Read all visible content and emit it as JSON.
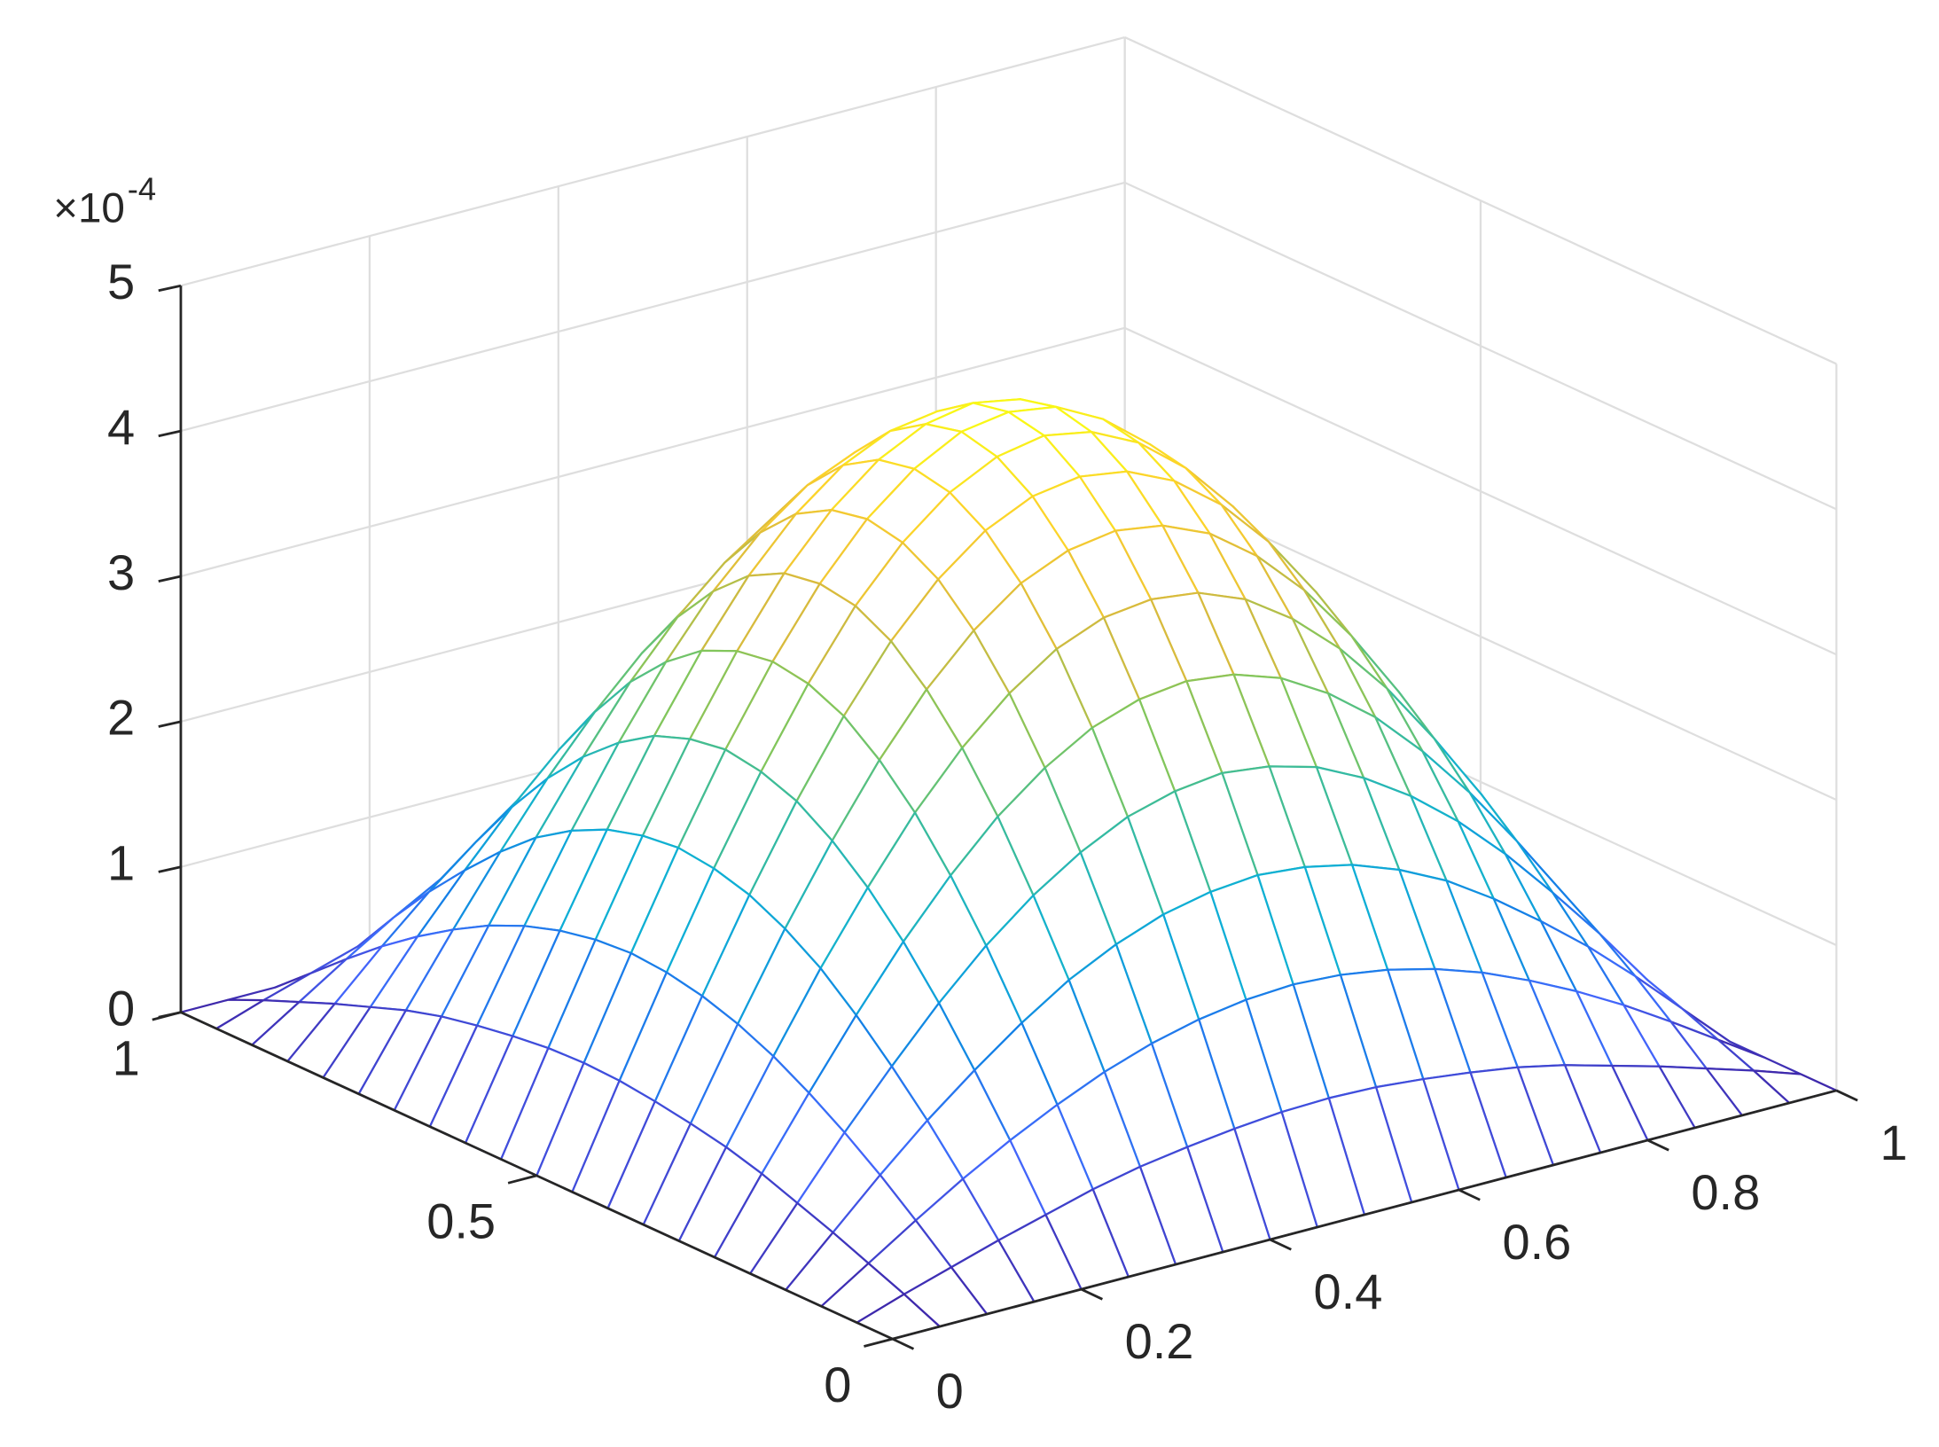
{
  "chart_data": {
    "type": "mesh",
    "z_multiplier": {
      "base": "×10",
      "exponent": "-4"
    },
    "x": [
      0,
      0.05,
      0.1,
      0.15,
      0.2,
      0.25,
      0.3,
      0.35,
      0.4,
      0.45,
      0.5,
      0.55,
      0.6,
      0.65,
      0.7,
      0.75,
      0.8,
      0.85,
      0.9,
      0.95,
      1
    ],
    "y": [
      0,
      0.05,
      0.1,
      0.15,
      0.2,
      0.25,
      0.3,
      0.35,
      0.4,
      0.45,
      0.5,
      0.55,
      0.6,
      0.65,
      0.7,
      0.75,
      0.8,
      0.85,
      0.9,
      0.95,
      1
    ],
    "z": [
      [
        0,
        0,
        0,
        0,
        0,
        0,
        0,
        0,
        0,
        0,
        0,
        0,
        0,
        0,
        0,
        0,
        0,
        0,
        0,
        0,
        0
      ],
      [
        0,
        0.11,
        0.21,
        0.31,
        0.4,
        0.49,
        0.56,
        0.61,
        0.65,
        0.68,
        0.69,
        0.68,
        0.65,
        0.61,
        0.56,
        0.49,
        0.4,
        0.31,
        0.21,
        0.11,
        0
      ],
      [
        0,
        0.21,
        0.42,
        0.62,
        0.8,
        0.96,
        1.1,
        1.21,
        1.29,
        1.34,
        1.36,
        1.34,
        1.29,
        1.21,
        1.1,
        0.96,
        0.8,
        0.62,
        0.42,
        0.21,
        0
      ],
      [
        0,
        0.31,
        0.62,
        0.91,
        1.17,
        1.41,
        1.62,
        1.78,
        1.9,
        1.97,
        2,
        1.97,
        1.9,
        1.78,
        1.62,
        1.41,
        1.17,
        0.91,
        0.62,
        0.31,
        0
      ],
      [
        0,
        0.4,
        0.8,
        1.17,
        1.52,
        1.83,
        2.09,
        2.3,
        2.46,
        2.55,
        2.59,
        2.55,
        2.46,
        2.3,
        2.09,
        1.83,
        1.52,
        1.17,
        0.8,
        0.4,
        0
      ],
      [
        0,
        0.49,
        0.96,
        1.41,
        1.83,
        2.2,
        2.52,
        2.77,
        2.96,
        3.07,
        3.11,
        3.07,
        2.96,
        2.77,
        2.52,
        2.2,
        1.83,
        1.41,
        0.96,
        0.49,
        0
      ],
      [
        0,
        0.56,
        1.1,
        1.62,
        2.09,
        2.52,
        2.88,
        3.17,
        3.39,
        3.52,
        3.56,
        3.52,
        3.39,
        3.17,
        2.88,
        2.52,
        2.09,
        1.62,
        1.1,
        0.56,
        0
      ],
      [
        0,
        0.61,
        1.21,
        1.78,
        2.3,
        2.77,
        3.17,
        3.49,
        3.73,
        3.87,
        3.92,
        3.87,
        3.73,
        3.49,
        3.17,
        2.77,
        2.3,
        1.78,
        1.21,
        0.61,
        0
      ],
      [
        0,
        0.65,
        1.29,
        1.9,
        2.46,
        2.96,
        3.39,
        3.73,
        3.98,
        4.13,
        4.18,
        4.13,
        3.98,
        3.73,
        3.39,
        2.96,
        2.46,
        1.9,
        1.29,
        0.65,
        0
      ],
      [
        0,
        0.68,
        1.34,
        1.97,
        2.55,
        3.07,
        3.52,
        3.87,
        4.13,
        4.29,
        4.35,
        4.29,
        4.13,
        3.87,
        3.52,
        3.07,
        2.55,
        1.97,
        1.34,
        0.68,
        0
      ],
      [
        0,
        0.69,
        1.36,
        2,
        2.59,
        3.11,
        3.56,
        3.92,
        4.18,
        4.35,
        4.4,
        4.35,
        4.18,
        3.92,
        3.56,
        3.11,
        2.59,
        2,
        1.36,
        0.69,
        0
      ],
      [
        0,
        0.68,
        1.34,
        1.97,
        2.55,
        3.07,
        3.52,
        3.87,
        4.13,
        4.29,
        4.35,
        4.29,
        4.13,
        3.87,
        3.52,
        3.07,
        2.55,
        1.97,
        1.34,
        0.68,
        0
      ],
      [
        0,
        0.65,
        1.29,
        1.9,
        2.46,
        2.96,
        3.39,
        3.73,
        3.98,
        4.13,
        4.18,
        4.13,
        3.98,
        3.73,
        3.39,
        2.96,
        2.46,
        1.9,
        1.29,
        0.65,
        0
      ],
      [
        0,
        0.61,
        1.21,
        1.78,
        2.3,
        2.77,
        3.17,
        3.49,
        3.73,
        3.87,
        3.92,
        3.87,
        3.73,
        3.49,
        3.17,
        2.77,
        2.3,
        1.78,
        1.21,
        0.61,
        0
      ],
      [
        0,
        0.56,
        1.1,
        1.62,
        2.09,
        2.52,
        2.88,
        3.17,
        3.39,
        3.52,
        3.56,
        3.52,
        3.39,
        3.17,
        2.88,
        2.52,
        2.09,
        1.62,
        1.1,
        0.56,
        0
      ],
      [
        0,
        0.49,
        0.96,
        1.41,
        1.83,
        2.2,
        2.52,
        2.77,
        2.96,
        3.07,
        3.11,
        3.07,
        2.96,
        2.77,
        2.52,
        2.2,
        1.83,
        1.41,
        0.96,
        0.49,
        0
      ],
      [
        0,
        0.4,
        0.8,
        1.17,
        1.52,
        1.83,
        2.09,
        2.3,
        2.46,
        2.55,
        2.59,
        2.55,
        2.46,
        2.3,
        2.09,
        1.83,
        1.52,
        1.17,
        0.8,
        0.4,
        0
      ],
      [
        0,
        0.31,
        0.62,
        0.91,
        1.17,
        1.41,
        1.62,
        1.78,
        1.9,
        1.97,
        2,
        1.97,
        1.9,
        1.78,
        1.62,
        1.41,
        1.17,
        0.91,
        0.62,
        0.31,
        0
      ],
      [
        0,
        0.21,
        0.42,
        0.62,
        0.8,
        0.96,
        1.1,
        1.21,
        1.29,
        1.34,
        1.36,
        1.34,
        1.29,
        1.21,
        1.1,
        0.96,
        0.8,
        0.62,
        0.42,
        0.21,
        0
      ],
      [
        0,
        0.11,
        0.21,
        0.31,
        0.4,
        0.49,
        0.56,
        0.61,
        0.65,
        0.68,
        0.69,
        0.68,
        0.65,
        0.61,
        0.56,
        0.49,
        0.4,
        0.31,
        0.21,
        0.11,
        0
      ],
      [
        0,
        0,
        0,
        0,
        0,
        0,
        0,
        0,
        0,
        0,
        0,
        0,
        0,
        0,
        0,
        0,
        0,
        0,
        0,
        0,
        0
      ]
    ],
    "xlim": [
      0,
      1
    ],
    "ylim": [
      0,
      1
    ],
    "zlim": [
      0,
      5
    ],
    "xticks": [
      0,
      0.2,
      0.4,
      0.6,
      0.8,
      1
    ],
    "yticks": [
      0,
      0.5,
      1
    ],
    "zticks": [
      0,
      1,
      2,
      3,
      4,
      5
    ],
    "grid": true,
    "colormap": [
      "#3e26a8",
      "#4367fd",
      "#1481e6",
      "#0eb0d5",
      "#3abc9b",
      "#80c65d",
      "#d7ba3d",
      "#fcce2e",
      "#f9fb15"
    ]
  }
}
